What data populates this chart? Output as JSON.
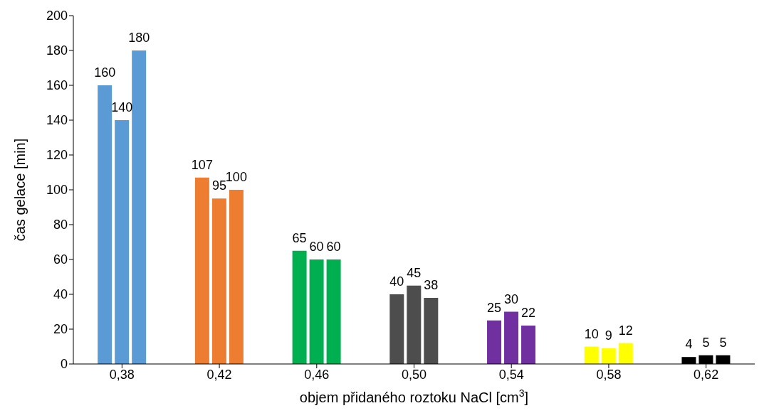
{
  "chart_data": {
    "type": "bar",
    "xlabel": "objem přidaného roztoku NaCl [cm$^{3}$]",
    "ylabel": "čas gelace [min]",
    "categories": [
      "0,38",
      "0,42",
      "0,46",
      "0,50",
      "0,54",
      "0,58",
      "0,62"
    ],
    "series": [
      {
        "colors": [
          "#5b9bd5",
          "#ed7d31",
          "#00b050",
          "#4d4d4d",
          "#7030a0",
          "#ffff00",
          "#000000"
        ],
        "values": [
          160,
          107,
          65,
          40,
          25,
          10,
          4
        ]
      },
      {
        "colors": [
          "#5b9bd5",
          "#ed7d31",
          "#00b050",
          "#4d4d4d",
          "#7030a0",
          "#ffff00",
          "#000000"
        ],
        "values": [
          140,
          95,
          60,
          45,
          30,
          9,
          5
        ]
      },
      {
        "colors": [
          "#5b9bd5",
          "#ed7d31",
          "#00b050",
          "#4d4d4d",
          "#7030a0",
          "#ffff00",
          "#000000"
        ],
        "values": [
          180,
          100,
          60,
          38,
          22,
          12,
          5
        ]
      }
    ],
    "ylim": [
      0,
      200
    ],
    "yticks": [
      0,
      20,
      40,
      60,
      80,
      100,
      120,
      140,
      160,
      180,
      200
    ],
    "grid": false,
    "legend": false,
    "data_labels": true
  }
}
